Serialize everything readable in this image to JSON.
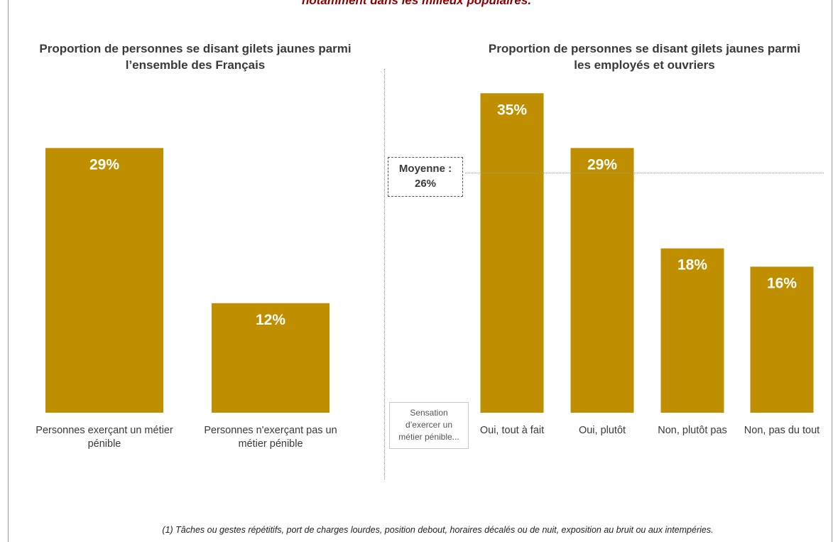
{
  "header": {
    "title_partial": "notamment dans les milieux populaires."
  },
  "left_panel": {
    "title_line1": "Proportion de personnes se disant gilets jaunes parmi",
    "title_line2": "l’ensemble des Français"
  },
  "right_panel": {
    "title_line1": "Proportion de personnes se disant gilets jaunes parmi",
    "title_line2": "les employés et ouvriers",
    "average_label_line1": "Moyenne :",
    "average_label_line2": "26%",
    "group_label_line1": "Sensation",
    "group_label_line2": "d’exercer un",
    "group_label_line3": "métier pénible..."
  },
  "footnote": "(1) Tâches ou gestes répétitifs, port de charges lourdes, position debout, horaires décalés ou de nuit, exposition au bruit ou aux intempéries.",
  "colors": {
    "bar": "#bf8f00",
    "title_accent": "#8b0000"
  },
  "chart_data": [
    {
      "type": "bar",
      "title": "Proportion de personnes se disant gilets jaunes parmi l’ensemble des Français",
      "categories": [
        [
          "Personnes exerçant un métier",
          "pénible"
        ],
        [
          "Personnes n'exerçant pas un",
          "métier pénible"
        ]
      ],
      "values": [
        29,
        12
      ],
      "value_labels": [
        "29%",
        "12%"
      ],
      "ylim": [
        0,
        40
      ],
      "grid": false
    },
    {
      "type": "bar",
      "title": "Proportion de personnes se disant gilets jaunes parmi les employés et ouvriers",
      "categories": [
        [
          "Oui, tout à fait"
        ],
        [
          "Oui, plutôt"
        ],
        [
          "Non, plutôt pas"
        ],
        [
          "Non, pas du tout"
        ]
      ],
      "values": [
        35,
        29,
        18,
        16
      ],
      "value_labels": [
        "35%",
        "29%",
        "18%",
        "16%"
      ],
      "reference_line": {
        "label": "Moyenne : 26%",
        "value": 26
      },
      "ylim": [
        0,
        40
      ],
      "grid": false
    }
  ]
}
